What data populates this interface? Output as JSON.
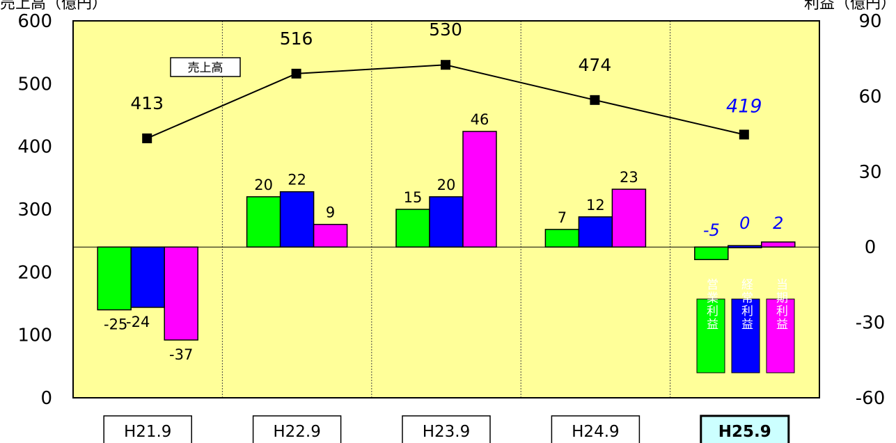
{
  "chart_data": {
    "type": "bar+line",
    "left_axis": {
      "title": "売上高（億円）",
      "min": 0,
      "max": 600,
      "ticks": [
        0,
        100,
        200,
        300,
        400,
        500,
        600
      ]
    },
    "right_axis": {
      "title": "利益（億円）",
      "min": -60,
      "max": 90,
      "ticks": [
        -60,
        -30,
        0,
        30,
        60,
        90
      ]
    },
    "categories": [
      "H21.9",
      "H22.9",
      "H23.9",
      "H24.9",
      "H25.9"
    ],
    "highlight_category": "H25.9",
    "line_series": {
      "name": "売上高",
      "values": [
        413,
        516,
        530,
        474,
        419
      ],
      "labels": [
        "413",
        "516",
        "530",
        "474",
        "419"
      ],
      "color": "#000000"
    },
    "bar_series": [
      {
        "name": "営業利益",
        "values": [
          -25,
          20,
          15,
          7,
          -5
        ],
        "labels": [
          "-25",
          "20",
          "15",
          "7",
          "-5"
        ],
        "color": "#00ff00"
      },
      {
        "name": "経常利益",
        "values": [
          -24,
          22,
          20,
          12,
          0
        ],
        "labels": [
          "-24",
          "22",
          "20",
          "12",
          "0"
        ],
        "color": "#0000ff"
      },
      {
        "name": "当期利益",
        "values": [
          -37,
          9,
          46,
          23,
          2
        ],
        "labels": [
          "-37",
          "9",
          "46",
          "23",
          "2"
        ],
        "color": "#ff00ff"
      }
    ],
    "plot_background": "#ffff99",
    "highlight_box_color": "#ccffff",
    "highlight_label_color": "#0000ff",
    "grid": {
      "vertical_category_separators": true,
      "horizontal": false
    },
    "legend_placement": "bottom-right"
  }
}
